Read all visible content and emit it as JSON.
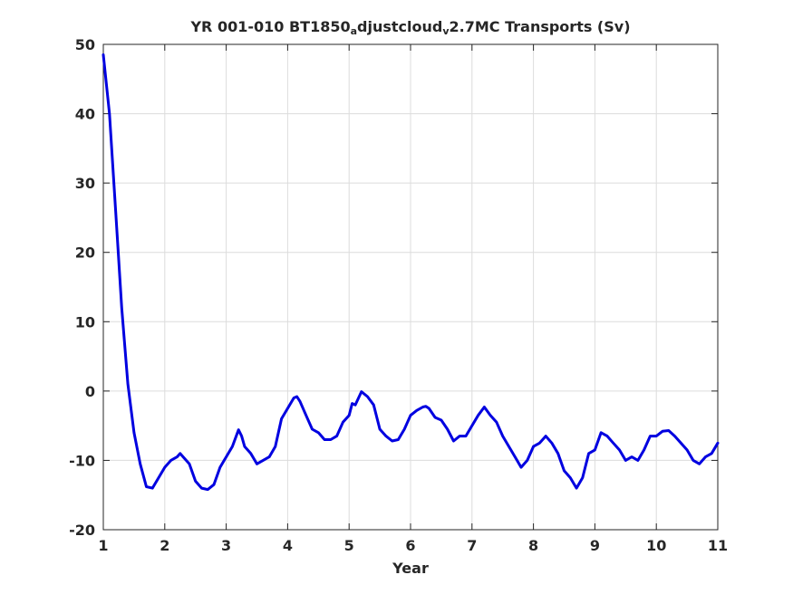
{
  "title": {
    "part1": "YR 001-010 BT1850",
    "sub1": "a",
    "part2": "djustcloud",
    "sub2": "v",
    "part3": "2.7MC Transports (Sv)"
  },
  "chart_data": {
    "type": "line",
    "xlabel": "Year",
    "ylabel": "",
    "xlim": [
      1,
      11
    ],
    "ylim": [
      -20,
      50
    ],
    "xticks": [
      1,
      2,
      3,
      4,
      5,
      6,
      7,
      8,
      9,
      10,
      11
    ],
    "yticks": [
      -20,
      -10,
      0,
      10,
      20,
      30,
      40,
      50
    ],
    "grid": true,
    "series": [
      {
        "color": "#0000e0",
        "x": [
          1.0,
          1.1,
          1.2,
          1.3,
          1.4,
          1.5,
          1.6,
          1.7,
          1.8,
          1.9,
          2.0,
          2.1,
          2.2,
          2.25,
          2.3,
          2.4,
          2.5,
          2.6,
          2.7,
          2.8,
          2.9,
          3.0,
          3.1,
          3.2,
          3.25,
          3.3,
          3.4,
          3.5,
          3.6,
          3.7,
          3.8,
          3.9,
          4.0,
          4.1,
          4.15,
          4.2,
          4.3,
          4.4,
          4.5,
          4.6,
          4.7,
          4.8,
          4.9,
          5.0,
          5.05,
          5.1,
          5.2,
          5.3,
          5.4,
          5.5,
          5.6,
          5.7,
          5.8,
          5.9,
          6.0,
          6.1,
          6.2,
          6.25,
          6.3,
          6.4,
          6.5,
          6.6,
          6.7,
          6.8,
          6.9,
          7.0,
          7.1,
          7.2,
          7.3,
          7.4,
          7.5,
          7.6,
          7.7,
          7.8,
          7.9,
          8.0,
          8.1,
          8.2,
          8.3,
          8.4,
          8.5,
          8.6,
          8.7,
          8.8,
          8.9,
          9.0,
          9.1,
          9.2,
          9.3,
          9.4,
          9.5,
          9.6,
          9.7,
          9.8,
          9.9,
          10.0,
          10.1,
          10.2,
          10.3,
          10.4,
          10.5,
          10.6,
          10.7,
          10.8,
          10.9,
          11.0
        ],
        "values": [
          48.5,
          40.0,
          26.0,
          12.0,
          1.0,
          -6.0,
          -10.5,
          -13.8,
          -14.0,
          -12.5,
          -11.0,
          -10.0,
          -9.5,
          -9.0,
          -9.5,
          -10.5,
          -13.0,
          -14.0,
          -14.2,
          -13.5,
          -11.0,
          -9.5,
          -8.0,
          -5.6,
          -6.5,
          -8.0,
          -9.0,
          -10.5,
          -10.0,
          -9.5,
          -8.0,
          -4.0,
          -2.5,
          -1.0,
          -0.8,
          -1.5,
          -3.5,
          -5.5,
          -6.0,
          -7.0,
          -7.0,
          -6.5,
          -4.5,
          -3.5,
          -1.8,
          -2.0,
          -0.1,
          -0.8,
          -2.0,
          -5.5,
          -6.5,
          -7.2,
          -7.0,
          -5.5,
          -3.5,
          -2.8,
          -2.3,
          -2.2,
          -2.5,
          -3.8,
          -4.2,
          -5.5,
          -7.2,
          -6.5,
          -6.5,
          -5.0,
          -3.5,
          -2.3,
          -3.5,
          -4.5,
          -6.5,
          -8.0,
          -9.5,
          -11.0,
          -10.0,
          -8.0,
          -7.5,
          -6.5,
          -7.5,
          -9.0,
          -11.5,
          -12.5,
          -14.0,
          -12.5,
          -9.0,
          -8.5,
          -6.0,
          -6.5,
          -7.5,
          -8.5,
          -10.0,
          -9.5,
          -10.0,
          -8.5,
          -6.5,
          -6.5,
          -5.8,
          -5.7,
          -6.5,
          -7.5,
          -8.5,
          -10.0,
          -10.5,
          -9.5,
          -9.0,
          -7.5
        ]
      }
    ]
  }
}
